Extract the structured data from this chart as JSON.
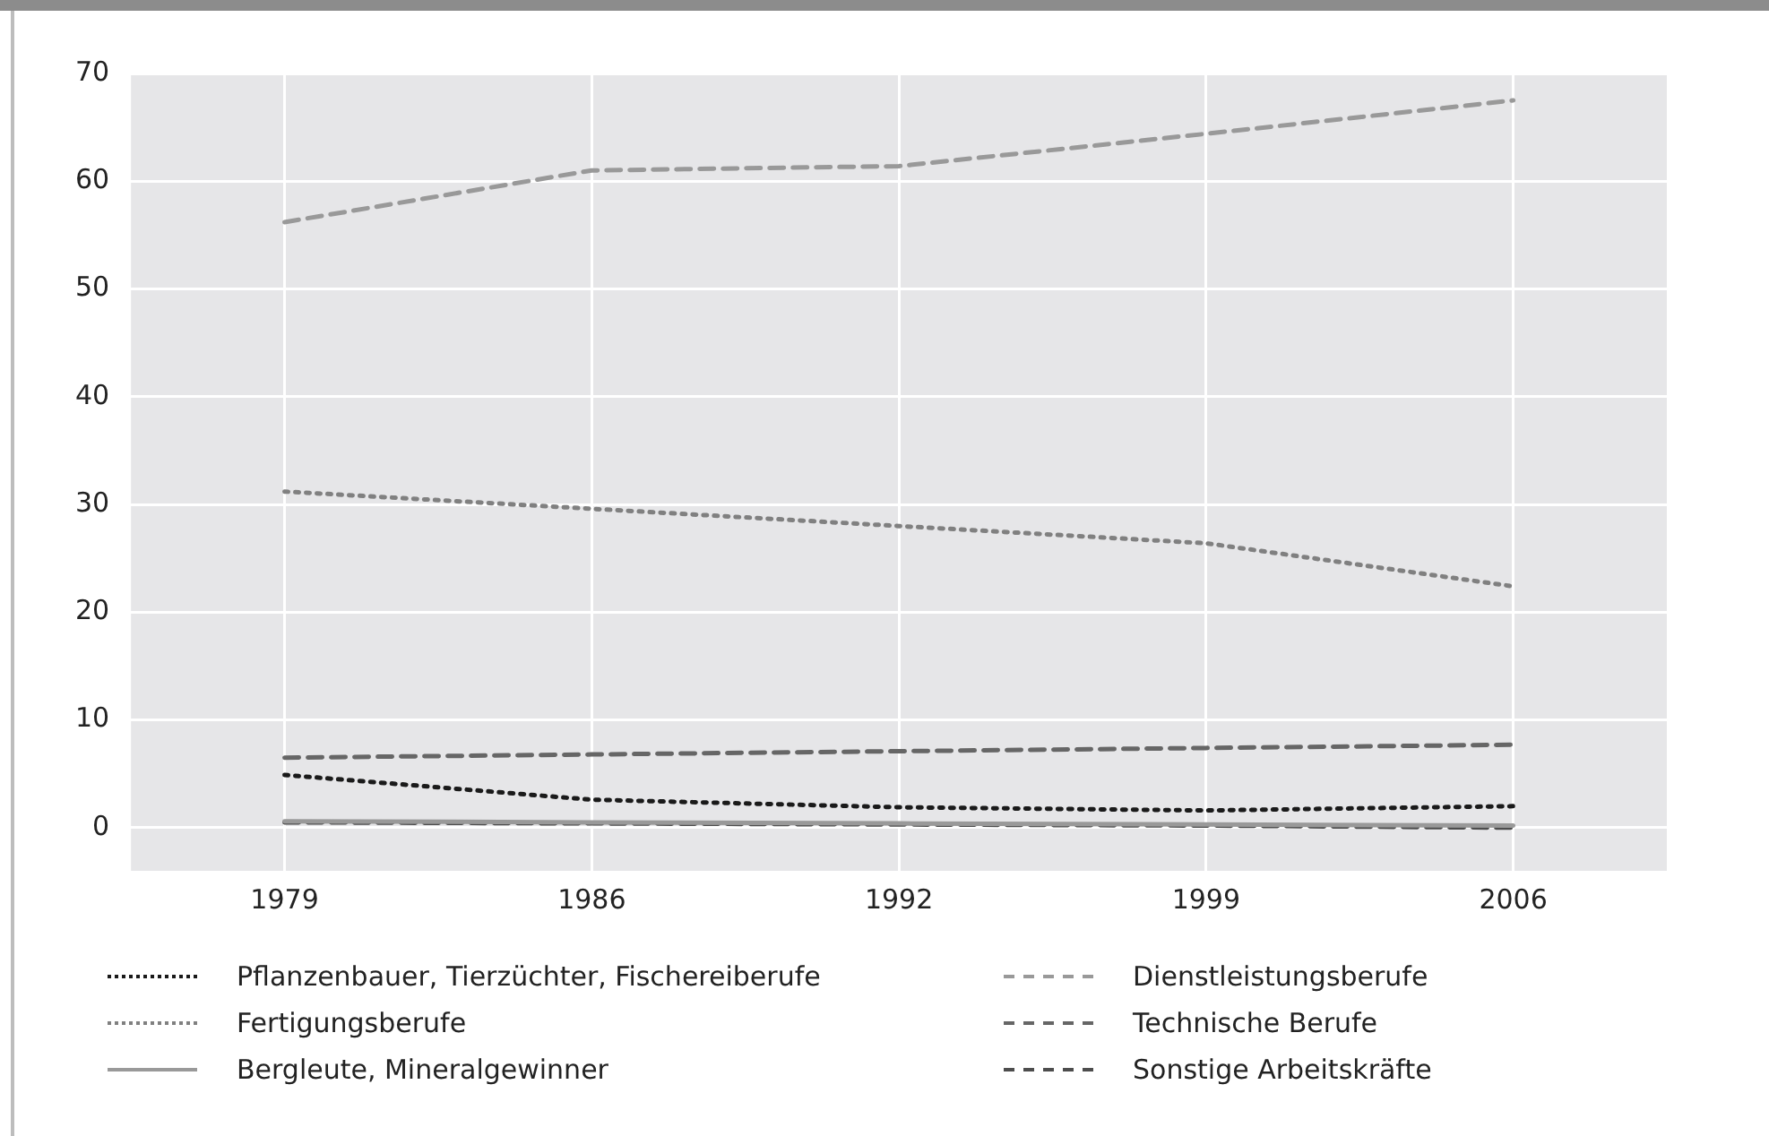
{
  "chart_data": {
    "type": "line",
    "categories": [
      "1979",
      "1986",
      "1992",
      "1999",
      "2006"
    ],
    "ylim": [
      -4,
      70
    ],
    "yticks": [
      0,
      10,
      20,
      30,
      40,
      50,
      60,
      70
    ],
    "grid": true,
    "legend": "bottom",
    "marker": "none",
    "series": [
      {
        "name": "Pflanzenbauer, Tierzüchter, Fischereiberufe",
        "color": "#1a1a1a",
        "line_style": "dotted",
        "values": [
          4.9,
          2.6,
          1.9,
          1.6,
          2.0
        ]
      },
      {
        "name": "Fertigungsberufe",
        "color": "#808080",
        "line_style": "dotted",
        "values": [
          31.2,
          29.6,
          28.0,
          26.4,
          22.4
        ]
      },
      {
        "name": "Bergleute, Mineralgewinner",
        "color": "#999999",
        "line_style": "solid",
        "values": [
          0.6,
          0.5,
          0.4,
          0.3,
          0.2
        ]
      },
      {
        "name": "Dienstleistungsberufe",
        "color": "#999999",
        "line_style": "dashed",
        "values": [
          56.2,
          61.0,
          61.4,
          64.4,
          67.5
        ]
      },
      {
        "name": "Technische Berufe",
        "color": "#666666",
        "line_style": "dashed",
        "values": [
          6.5,
          6.8,
          7.1,
          7.4,
          7.7
        ]
      },
      {
        "name": "Sonstige Arbeitskräfte",
        "color": "#4d4d4d",
        "line_style": "dashed",
        "values": [
          0.5,
          0.4,
          0.3,
          0.2,
          0.0
        ]
      }
    ]
  }
}
